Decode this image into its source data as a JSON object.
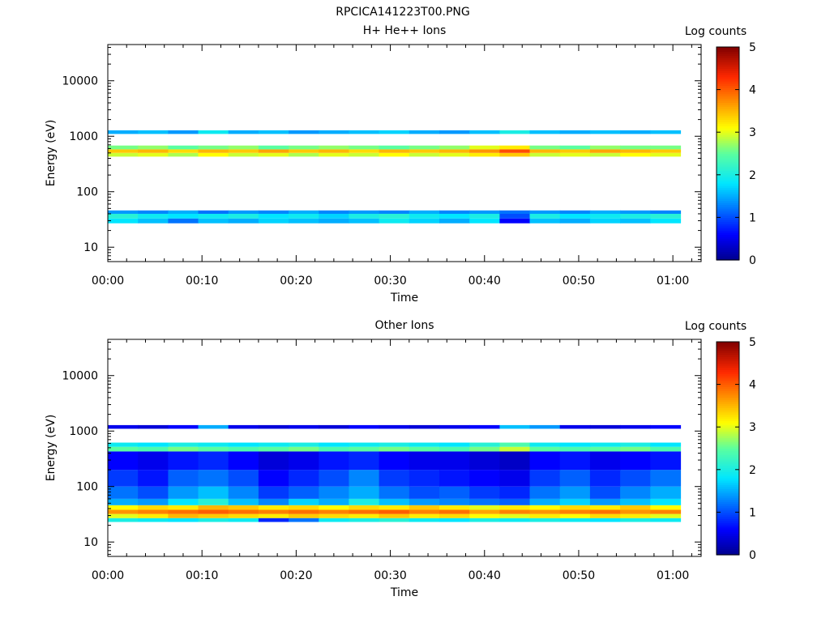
{
  "figure_title": "RPCICA141223T00.PNG",
  "chart_data": [
    {
      "type": "heatmap",
      "title": "H+ He++ Ions",
      "xlabel": "Time",
      "ylabel": "Energy (eV)",
      "y_scale": "log",
      "xlim_minutes": [
        0,
        63
      ],
      "ylim": [
        5.5,
        45000
      ],
      "x_tick_labels": [
        "00:00",
        "00:10",
        "00:20",
        "00:30",
        "00:40",
        "00:50",
        "01:00"
      ],
      "y_tick_labels": [
        "10",
        "100",
        "1000",
        "10000"
      ],
      "colorbar": {
        "label": "Log counts",
        "range": [
          0,
          5
        ],
        "tick_labels": [
          "0",
          "1",
          "2",
          "3",
          "4",
          "5"
        ]
      },
      "time_bins_minutes": [
        0,
        3.2,
        6.4,
        9.6,
        12.8,
        16.0,
        19.2,
        22.4,
        25.6,
        28.8,
        32.0,
        35.2,
        38.4,
        41.6,
        44.8,
        48.0,
        51.2,
        54.4,
        57.6,
        60.8
      ],
      "bands": [
        {
          "energy_range_eV": [
            27,
            33
          ],
          "log_counts": [
            1.8,
            1.6,
            1.2,
            1.6,
            1.5,
            1.7,
            1.6,
            1.5,
            1.6,
            1.9,
            1.7,
            1.5,
            1.8,
            0.6,
            1.6,
            1.5,
            1.7,
            1.6,
            1.8
          ]
        },
        {
          "energy_range_eV": [
            33,
            40
          ],
          "log_counts": [
            2.1,
            1.9,
            1.8,
            1.9,
            2.0,
            1.8,
            1.9,
            1.7,
            2.0,
            2.1,
            1.9,
            1.8,
            2.0,
            1.0,
            2.0,
            1.8,
            1.9,
            2.0,
            2.1
          ]
        },
        {
          "energy_range_eV": [
            40,
            46
          ],
          "log_counts": [
            1.4,
            1.3,
            1.5,
            1.2,
            1.4,
            1.3,
            1.5,
            1.3,
            1.4,
            1.3,
            1.5,
            1.3,
            1.4,
            1.2,
            1.4,
            1.3,
            1.5,
            1.4,
            1.3
          ]
        },
        {
          "energy_range_eV": [
            430,
            500
          ],
          "log_counts": [
            2.9,
            3.0,
            2.8,
            3.1,
            2.9,
            3.0,
            2.8,
            3.0,
            2.9,
            3.1,
            2.9,
            3.0,
            3.2,
            3.4,
            2.9,
            3.0,
            2.9,
            3.1,
            3.0
          ]
        },
        {
          "energy_range_eV": [
            500,
            580
          ],
          "log_counts": [
            3.4,
            3.5,
            3.3,
            3.5,
            3.4,
            3.6,
            3.4,
            3.5,
            3.3,
            3.5,
            3.4,
            3.5,
            3.7,
            4.1,
            3.5,
            3.4,
            3.6,
            3.5,
            3.4
          ]
        },
        {
          "energy_range_eV": [
            580,
            680
          ],
          "log_counts": [
            2.6,
            2.7,
            2.5,
            2.6,
            2.7,
            2.5,
            2.6,
            2.7,
            2.6,
            2.5,
            2.6,
            2.7,
            3.0,
            3.2,
            2.6,
            2.5,
            2.7,
            2.6,
            2.6
          ]
        },
        {
          "energy_range_eV": [
            1100,
            1280
          ],
          "log_counts": [
            1.5,
            1.6,
            1.4,
            1.9,
            1.5,
            1.6,
            1.4,
            1.5,
            1.6,
            1.7,
            1.5,
            1.4,
            1.6,
            2.0,
            1.6,
            1.5,
            1.6,
            1.5,
            1.6
          ]
        }
      ]
    },
    {
      "type": "heatmap",
      "title": "Other Ions",
      "xlabel": "Time",
      "ylabel": "Energy (eV)",
      "y_scale": "log",
      "xlim_minutes": [
        0,
        63
      ],
      "ylim": [
        5.5,
        45000
      ],
      "x_tick_labels": [
        "00:00",
        "00:10",
        "00:20",
        "00:30",
        "00:40",
        "00:50",
        "01:00"
      ],
      "y_tick_labels": [
        "10",
        "100",
        "1000",
        "10000"
      ],
      "colorbar": {
        "label": "Log counts",
        "range": [
          0,
          5
        ],
        "tick_labels": [
          "0",
          "1",
          "2",
          "3",
          "4",
          "5"
        ]
      },
      "time_bins_minutes": [
        0,
        3.2,
        6.4,
        9.6,
        12.8,
        16.0,
        19.2,
        22.4,
        25.6,
        28.8,
        32.0,
        35.2,
        38.4,
        41.6,
        44.8,
        48.0,
        51.2,
        54.4,
        57.6,
        60.8
      ],
      "bands": [
        {
          "energy_range_eV": [
            23,
            27
          ],
          "log_counts": [
            2.0,
            1.9,
            1.8,
            2.0,
            1.9,
            0.8,
            1.2,
            1.9,
            2.0,
            2.1,
            1.9,
            1.8,
            2.0,
            1.9,
            2.0,
            1.9,
            1.8,
            2.0,
            1.9
          ]
        },
        {
          "energy_range_eV": [
            27,
            32
          ],
          "log_counts": [
            3.0,
            3.2,
            3.5,
            3.4,
            3.3,
            3.2,
            3.4,
            3.3,
            3.2,
            3.4,
            3.2,
            3.3,
            3.1,
            3.0,
            3.2,
            3.1,
            3.3,
            3.2,
            3.0
          ]
        },
        {
          "energy_range_eV": [
            32,
            38
          ],
          "log_counts": [
            3.7,
            3.8,
            3.9,
            4.0,
            3.9,
            3.8,
            3.9,
            3.8,
            3.9,
            4.0,
            3.8,
            3.9,
            3.6,
            3.8,
            3.7,
            3.8,
            3.9,
            3.7,
            3.8
          ]
        },
        {
          "energy_range_eV": [
            38,
            46
          ],
          "log_counts": [
            3.1,
            3.3,
            3.2,
            3.5,
            3.4,
            3.2,
            3.3,
            3.1,
            3.3,
            3.2,
            3.4,
            3.2,
            3.0,
            3.2,
            3.1,
            3.3,
            3.2,
            3.4,
            3.1
          ]
        },
        {
          "energy_range_eV": [
            46,
            60
          ],
          "log_counts": [
            1.5,
            1.4,
            1.8,
            2.1,
            1.6,
            1.3,
            1.7,
            1.5,
            2.0,
            1.6,
            1.4,
            1.3,
            1.2,
            1.1,
            1.5,
            1.7,
            1.4,
            1.6,
            1.8
          ]
        },
        {
          "energy_range_eV": [
            60,
            100
          ],
          "log_counts": [
            1.2,
            1.0,
            1.4,
            1.6,
            1.3,
            0.9,
            1.1,
            1.3,
            1.5,
            1.2,
            1.0,
            1.1,
            0.9,
            0.8,
            1.2,
            1.4,
            1.0,
            1.3,
            1.5
          ]
        },
        {
          "energy_range_eV": [
            100,
            200
          ],
          "log_counts": [
            0.9,
            0.7,
            1.1,
            1.2,
            1.0,
            0.6,
            0.8,
            1.0,
            1.3,
            0.9,
            0.8,
            0.7,
            0.6,
            0.5,
            0.9,
            1.1,
            0.8,
            1.0,
            1.2
          ]
        },
        {
          "energy_range_eV": [
            200,
            430
          ],
          "log_counts": [
            0.6,
            0.5,
            0.7,
            0.8,
            0.6,
            0.4,
            0.5,
            0.7,
            0.8,
            0.6,
            0.5,
            0.5,
            0.4,
            0.3,
            0.6,
            0.7,
            0.5,
            0.6,
            0.7
          ]
        },
        {
          "energy_range_eV": [
            430,
            520
          ],
          "log_counts": [
            2.5,
            2.4,
            2.6,
            2.5,
            2.4,
            2.5,
            2.6,
            2.4,
            2.5,
            2.6,
            2.5,
            2.4,
            2.6,
            2.9,
            2.5,
            2.4,
            2.5,
            2.6,
            2.4
          ]
        },
        {
          "energy_range_eV": [
            520,
            620
          ],
          "log_counts": [
            1.9,
            1.8,
            2.0,
            1.9,
            1.8,
            1.9,
            2.0,
            1.8,
            1.9,
            2.0,
            1.9,
            1.8,
            2.1,
            2.4,
            1.9,
            1.8,
            1.9,
            2.0,
            1.8
          ]
        },
        {
          "energy_range_eV": [
            1100,
            1280
          ],
          "log_counts": [
            0.5,
            0.4,
            0.6,
            1.5,
            0.5,
            0.4,
            0.5,
            0.4,
            0.6,
            0.5,
            0.4,
            0.5,
            0.6,
            1.6,
            1.4,
            0.5,
            0.4,
            0.5,
            0.6
          ]
        }
      ]
    }
  ],
  "colors": {
    "background": "#ffffff",
    "empty_bin": "#ffffff",
    "axis": "#000000"
  }
}
